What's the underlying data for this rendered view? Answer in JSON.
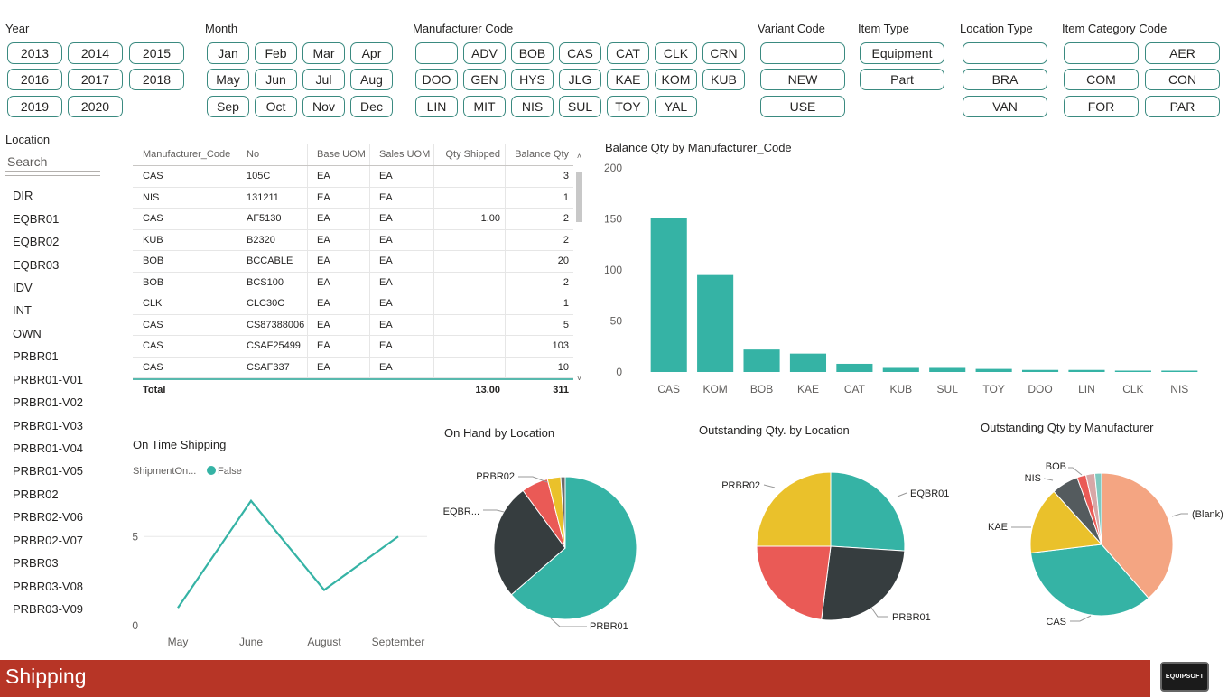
{
  "slicers": {
    "year": {
      "title": "Year",
      "items": [
        "2013",
        "2014",
        "2015",
        "2016",
        "2017",
        "2018",
        "2019",
        "2020"
      ]
    },
    "month": {
      "title": "Month",
      "items": [
        "Jan",
        "Feb",
        "Mar",
        "Apr",
        "May",
        "Jun",
        "Jul",
        "Aug",
        "Sep",
        "Oct",
        "Nov",
        "Dec"
      ]
    },
    "manufacturer": {
      "title": "Manufacturer Code",
      "items": [
        "",
        "ADV",
        "BOB",
        "CAS",
        "CAT",
        "CLK",
        "CRN",
        "DOO",
        "GEN",
        "HYS",
        "JLG",
        "KAE",
        "KOM",
        "KUB",
        "LIN",
        "MIT",
        "NIS",
        "SUL",
        "TOY",
        "YAL"
      ]
    },
    "variant": {
      "title": "Variant Code",
      "items": [
        "",
        "NEW",
        "USE"
      ]
    },
    "item_type": {
      "title": "Item Type",
      "items": [
        "Equipment",
        "Part"
      ]
    },
    "location_type": {
      "title": "Location Type",
      "items": [
        "",
        "BRA",
        "VAN"
      ]
    },
    "item_category": {
      "title": "Item Category Code",
      "items": [
        "",
        "AER",
        "COM",
        "CON",
        "FOR",
        "PAR"
      ]
    }
  },
  "location": {
    "title": "Location",
    "search_placeholder": "Search",
    "items": [
      "DIR",
      "EQBR01",
      "EQBR02",
      "EQBR03",
      "IDV",
      "INT",
      "OWN",
      "PRBR01",
      "PRBR01-V01",
      "PRBR01-V02",
      "PRBR01-V03",
      "PRBR01-V04",
      "PRBR01-V05",
      "PRBR02",
      "PRBR02-V06",
      "PRBR02-V07",
      "PRBR03",
      "PRBR03-V08",
      "PRBR03-V09"
    ]
  },
  "table": {
    "columns": [
      "Manufacturer_Code",
      "No",
      "Base UOM",
      "Sales UOM",
      "Qty Shipped",
      "Balance Qty"
    ],
    "rows": [
      [
        "CAS",
        "105C",
        "EA",
        "EA",
        "",
        "3"
      ],
      [
        "NIS",
        "131211",
        "EA",
        "EA",
        "",
        "1"
      ],
      [
        "CAS",
        "AF5130",
        "EA",
        "EA",
        "1.00",
        "2"
      ],
      [
        "KUB",
        "B2320",
        "EA",
        "EA",
        "",
        "2"
      ],
      [
        "BOB",
        "BCCABLE",
        "EA",
        "EA",
        "",
        "20"
      ],
      [
        "BOB",
        "BCS100",
        "EA",
        "EA",
        "",
        "2"
      ],
      [
        "CLK",
        "CLC30C",
        "EA",
        "EA",
        "",
        "1"
      ],
      [
        "CAS",
        "CS87388006",
        "EA",
        "EA",
        "",
        "5"
      ],
      [
        "CAS",
        "CSAF25499",
        "EA",
        "EA",
        "",
        "103"
      ],
      [
        "CAS",
        "CSAF337",
        "EA",
        "EA",
        "",
        "10"
      ]
    ],
    "total": [
      "Total",
      "",
      "",
      "",
      "13.00",
      "311"
    ],
    "scroll_up": "˄",
    "scroll_down": "˅"
  },
  "chart_data": [
    {
      "type": "bar",
      "title": "Balance Qty by Manufacturer_Code",
      "categories": [
        "CAS",
        "KOM",
        "BOB",
        "KAE",
        "CAT",
        "KUB",
        "SUL",
        "TOY",
        "DOO",
        "LIN",
        "CLK",
        "NIS"
      ],
      "values": [
        151,
        95,
        22,
        18,
        8,
        4,
        4,
        3,
        2,
        2,
        1,
        1
      ],
      "ylim": [
        0,
        200
      ],
      "yticks": [
        0,
        50,
        100,
        150,
        200
      ],
      "color": "#35b3a5"
    },
    {
      "type": "line",
      "title": "On Time Shipping",
      "legend_title": "ShipmentOn...",
      "legend_placement": "top-left",
      "categories": [
        "May",
        "June",
        "August",
        "September"
      ],
      "series": [
        {
          "name": "False",
          "values": [
            1,
            7,
            2,
            5
          ]
        }
      ],
      "ylim": [
        0,
        8
      ],
      "yticks": [
        0,
        5
      ],
      "color": "#35b3a5"
    },
    {
      "type": "pie",
      "title": "On Hand by Location",
      "labels": [
        "PRBR01",
        "EQBR...",
        "PRBR02",
        "",
        ""
      ],
      "values": [
        63,
        26,
        6,
        3,
        1
      ],
      "colors": [
        "#35b3a5",
        "#363d3f",
        "#ea5a56",
        "#eac12b",
        "#6b6b6b"
      ]
    },
    {
      "type": "pie",
      "title": "Outstanding Qty. by Location",
      "labels": [
        "EQBR01",
        "PRBR01",
        "",
        "PRBR02"
      ],
      "values": [
        26,
        26,
        23,
        25
      ],
      "colors": [
        "#35b3a5",
        "#363d3f",
        "#ea5a56",
        "#eac12b"
      ]
    },
    {
      "type": "pie",
      "title": "Outstanding Qty by Manufacturer",
      "labels": [
        "(Blank)",
        "CAS",
        "KAE",
        "",
        "NIS",
        "BOB",
        "",
        ""
      ],
      "values": [
        38,
        34,
        15,
        0,
        6,
        2,
        2,
        1.5
      ],
      "colors": [
        "#f4a582",
        "#35b3a5",
        "#eac12b",
        "#eac12b",
        "#545b5e",
        "#ea5a56",
        "#d8a7a7",
        "#7fc9c0"
      ]
    }
  ],
  "footer": {
    "title": "Shipping",
    "logo_text": "EQUIPSOFT"
  }
}
